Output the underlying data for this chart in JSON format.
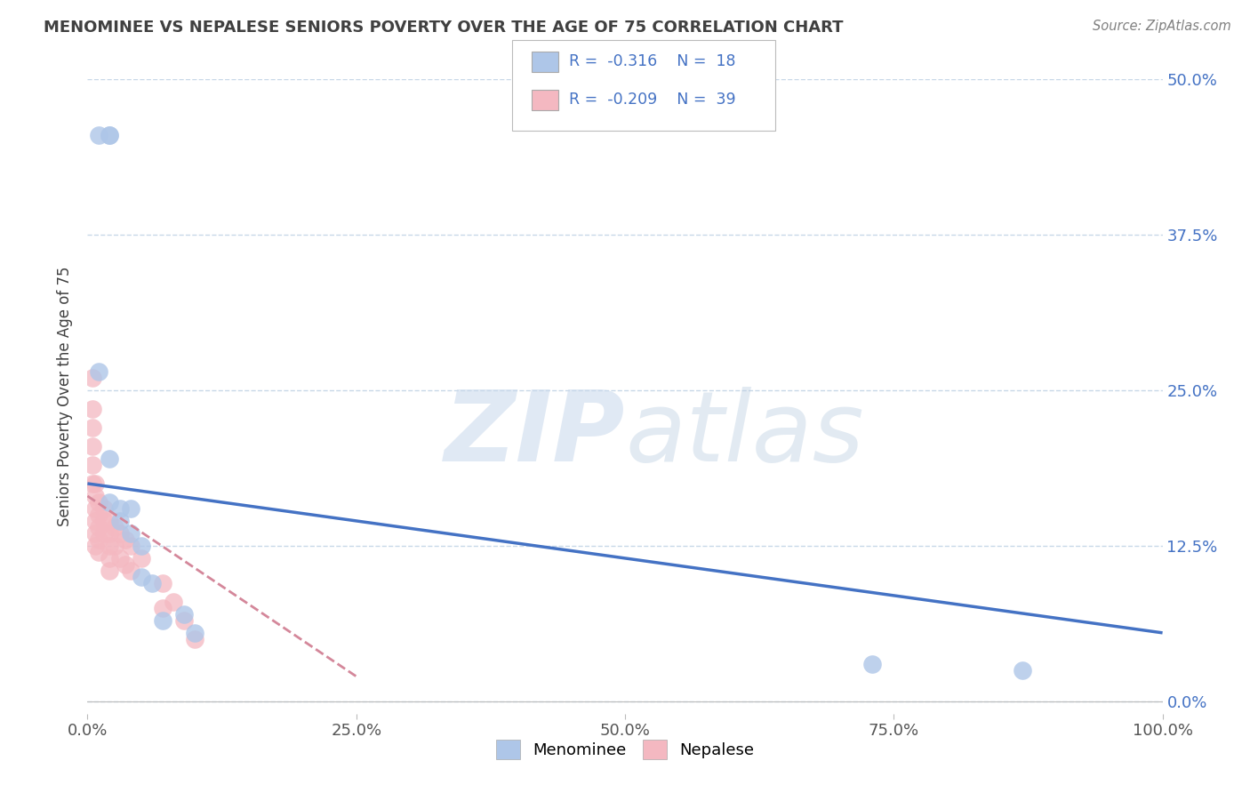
{
  "title": "MENOMINEE VS NEPALESE SENIORS POVERTY OVER THE AGE OF 75 CORRELATION CHART",
  "source": "Source: ZipAtlas.com",
  "ylabel": "Seniors Poverty Over the Age of 75",
  "watermark_zip": "ZIP",
  "watermark_atlas": "atlas",
  "legend_entries": [
    {
      "label": "Menominee",
      "R": "-0.316",
      "N": "18",
      "color": "#aec6e8"
    },
    {
      "label": "Nepalese",
      "R": "-0.209",
      "N": "39",
      "color": "#f4b8c1"
    }
  ],
  "menominee_x": [
    0.01,
    0.02,
    0.01,
    0.02,
    0.02,
    0.03,
    0.03,
    0.04,
    0.04,
    0.05,
    0.05,
    0.06,
    0.07,
    0.09,
    0.1,
    0.73,
    0.87,
    0.02
  ],
  "menominee_y": [
    0.455,
    0.455,
    0.265,
    0.195,
    0.16,
    0.155,
    0.145,
    0.155,
    0.135,
    0.125,
    0.1,
    0.095,
    0.065,
    0.07,
    0.055,
    0.03,
    0.025,
    0.455
  ],
  "nepalese_x": [
    0.005,
    0.005,
    0.005,
    0.005,
    0.005,
    0.005,
    0.007,
    0.007,
    0.007,
    0.007,
    0.007,
    0.007,
    0.01,
    0.01,
    0.01,
    0.01,
    0.01,
    0.015,
    0.015,
    0.015,
    0.02,
    0.02,
    0.02,
    0.02,
    0.02,
    0.025,
    0.025,
    0.03,
    0.03,
    0.035,
    0.035,
    0.04,
    0.04,
    0.05,
    0.07,
    0.07,
    0.08,
    0.09,
    0.1
  ],
  "nepalese_y": [
    0.26,
    0.235,
    0.22,
    0.205,
    0.19,
    0.175,
    0.175,
    0.165,
    0.155,
    0.145,
    0.135,
    0.125,
    0.16,
    0.15,
    0.14,
    0.13,
    0.12,
    0.155,
    0.145,
    0.135,
    0.145,
    0.135,
    0.125,
    0.115,
    0.105,
    0.14,
    0.125,
    0.135,
    0.115,
    0.13,
    0.11,
    0.125,
    0.105,
    0.115,
    0.095,
    0.075,
    0.08,
    0.065,
    0.05
  ],
  "xlim": [
    0.0,
    1.0
  ],
  "ylim": [
    -0.01,
    0.5
  ],
  "xticks": [
    0.0,
    0.25,
    0.5,
    0.75,
    1.0
  ],
  "xtick_labels": [
    "0.0%",
    "25.0%",
    "50.0%",
    "75.0%",
    "100.0%"
  ],
  "ytick_labels": [
    "0.0%",
    "12.5%",
    "25.0%",
    "37.5%",
    "50.0%"
  ],
  "yticks": [
    0.0,
    0.125,
    0.25,
    0.375,
    0.5
  ],
  "menominee_color": "#aec6e8",
  "nepalese_color": "#f4b8c1",
  "trend_menominee_color": "#4472c4",
  "trend_nepalese_color": "#d4879a",
  "background_color": "#ffffff",
  "grid_color": "#c8d8e8",
  "right_ytick_color": "#4472c4",
  "title_color": "#404040",
  "source_color": "#808080",
  "menominee_trend_x0": 0.0,
  "menominee_trend_x1": 1.0,
  "menominee_trend_y0": 0.175,
  "menominee_trend_y1": 0.055,
  "nepalese_trend_x0": 0.0,
  "nepalese_trend_x1": 0.25,
  "nepalese_trend_y0": 0.165,
  "nepalese_trend_y1": 0.02
}
